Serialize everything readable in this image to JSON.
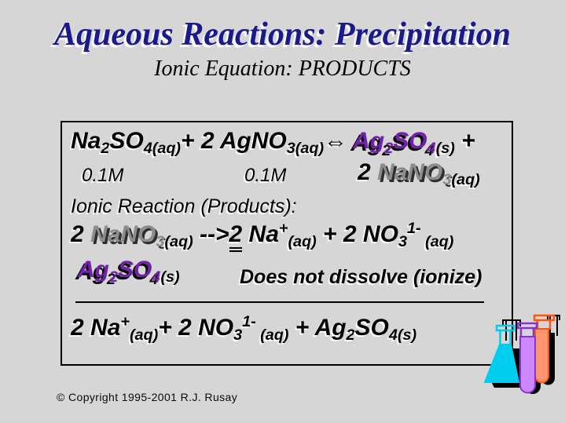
{
  "slide": {
    "title": "Aqueous Reactions: Precipitation",
    "subtitle": "Ionic Equation: PRODUCTS",
    "copyright": "© Copyright 1995-2001 R.J. Rusay"
  },
  "colors": {
    "background": "#d6d6d6",
    "title_blue": "#1a1a8c",
    "eq_black": "#000000",
    "eq_purple": "#7122a8",
    "eq_gray": "#8c8c8c",
    "flask_cyan": "#00ccee",
    "tube_purple_fill": "#cc88ff",
    "tube_purple_stroke": "#8833cc",
    "tube_orange_fill": "#ff9470",
    "tube_orange_stroke": "#ff5511"
  },
  "equations": {
    "line1": [
      {
        "t": "Na"
      },
      {
        "t": "2",
        "s": "sub"
      },
      {
        "t": "SO"
      },
      {
        "t": "4(aq)",
        "s": "sub"
      },
      {
        "t": "+ 2 AgNO"
      },
      {
        "t": "3(aq)",
        "s": "sub"
      },
      {
        "t": "⇔ "
      },
      {
        "t": "Ag",
        "c": "purple"
      },
      {
        "t": "2",
        "s": "sub",
        "c": "purple"
      },
      {
        "t": "SO",
        "c": "purple"
      },
      {
        "t": "4",
        "s": "sub",
        "c": "purple"
      },
      {
        "t": "(s)",
        "s": "sub"
      },
      {
        "t": " +"
      }
    ],
    "conc1": "0.1M",
    "conc2": "0.1M",
    "line2_products": [
      {
        "t": "2 "
      },
      {
        "t": "NaNO",
        "c": "gray"
      },
      {
        "t": "3",
        "s": "sub",
        "c": "gray"
      },
      {
        "t": "(aq)",
        "s": "sub"
      }
    ],
    "ionic_label": "Ionic Reaction (Products):",
    "line4": [
      {
        "t": "2 "
      },
      {
        "t": "NaNO",
        "c": "gray"
      },
      {
        "t": "3",
        "s": "sub",
        "c": "gray"
      },
      {
        "t": "(aq)",
        "s": "sub"
      },
      {
        "t": " -->"
      },
      {
        "t": "2",
        "u": true
      },
      {
        "t": " Na"
      },
      {
        "t": "+",
        "s": "sup"
      },
      {
        "t": "(aq)",
        "s": "sub"
      },
      {
        "t": " + 2 NO"
      },
      {
        "t": "3",
        "s": "sub"
      },
      {
        "t": "1-",
        "s": "sup"
      },
      {
        "t": " (aq)",
        "s": "sub"
      }
    ],
    "line5_formula": [
      {
        "t": "Ag",
        "c": "purple"
      },
      {
        "t": "2",
        "s": "sub",
        "c": "purple"
      },
      {
        "t": "SO",
        "c": "purple"
      },
      {
        "t": "4",
        "s": "sub",
        "c": "purple"
      },
      {
        "t": "(s)",
        "s": "sub"
      }
    ],
    "line5_note": "Does not dissolve (ionize)",
    "line6": [
      {
        "t": "2 Na"
      },
      {
        "t": "+",
        "s": "sup"
      },
      {
        "t": "(aq)",
        "s": "sub"
      },
      {
        "t": "+ 2 NO"
      },
      {
        "t": "3",
        "s": "sub"
      },
      {
        "t": "1-",
        "s": "sup"
      },
      {
        "t": " (aq)",
        "s": "sub"
      },
      {
        "t": " + Ag"
      },
      {
        "t": "2",
        "s": "sub"
      },
      {
        "t": "SO"
      },
      {
        "t": "4(s)",
        "s": "sub"
      }
    ]
  },
  "graphic": {
    "glassware_icon": "erlenmeyer-flask-and-two-test-tubes"
  }
}
